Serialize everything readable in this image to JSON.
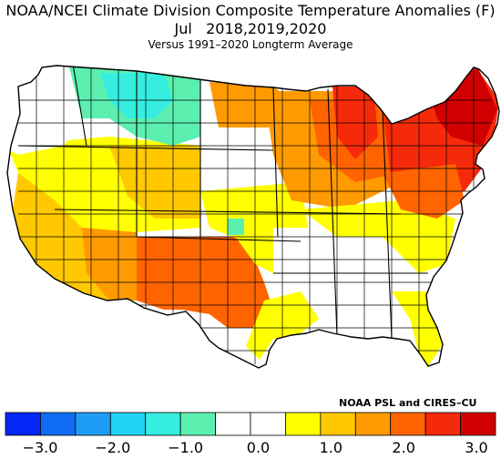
{
  "title": "NOAA/NCEI Climate Division Composite Temperature Anomalies (F)",
  "title_line2": "Jul   2018,2019,2020",
  "subtitle": "Versus 1991–2020 Longterm Average",
  "credit": "NOAA PSL and CIRES–CU",
  "legend": {
    "tick_labels": [
      "−3.0",
      "−2.0",
      "−1.0",
      "0.0",
      "1.0",
      "2.0",
      "3.0"
    ],
    "tick_values": [
      -3.0,
      -2.0,
      -1.0,
      0.0,
      1.0,
      2.0,
      3.0
    ],
    "range": [
      -3.0,
      3.0
    ],
    "step": 0.5,
    "colors": [
      "#0526f5",
      "#0f6df5",
      "#1f9df5",
      "#21d3f3",
      "#35eedf",
      "#5cf0b0",
      "#ffffff",
      "#ffffff",
      "#ffff00",
      "#ffc800",
      "#ff9a00",
      "#ff6400",
      "#f52a0a",
      "#d00000"
    ]
  },
  "colors": {
    "neutral": "#ffffff",
    "pos_0_05": "#ffff00",
    "pos_05_1": "#ffc800",
    "pos_1_15": "#ff9a00",
    "pos_15_2": "#ff6400",
    "pos_2_25": "#f52a0a",
    "pos_25_3": "#d00000",
    "neg_05_1": "#5cf0b0",
    "neg_1_15": "#35eedf",
    "neg_15_2": "#21d3f3"
  }
}
